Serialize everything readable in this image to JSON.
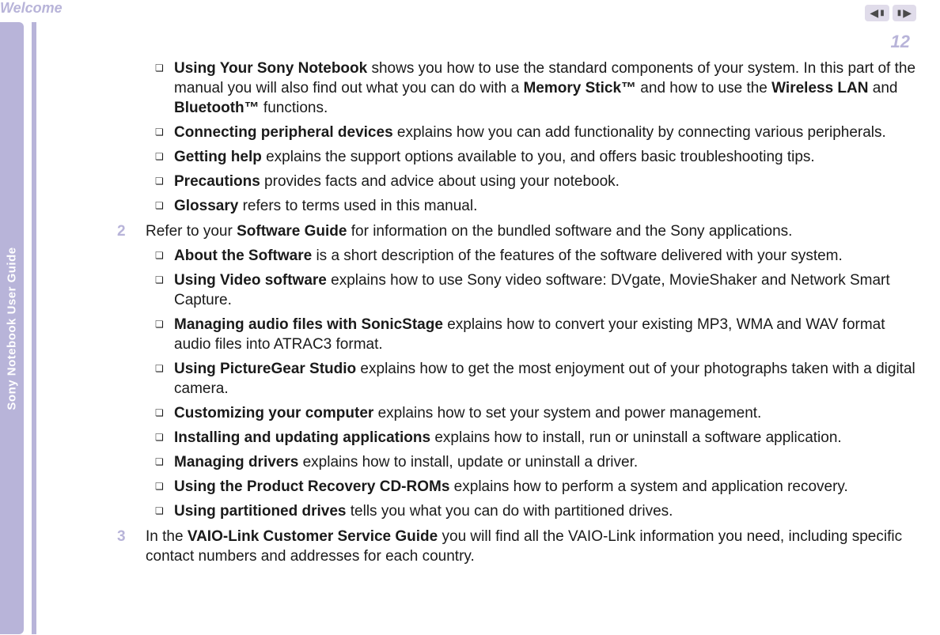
{
  "header": {
    "section": "Welcome",
    "side_label": "Sony Notebook User Guide",
    "page_number": "12"
  },
  "items": {
    "b1": {
      "title": "Using Your Sony Notebook",
      "rest": " shows you how to use the standard components of your system. In this part of the manual you will also find out what you can do with a ",
      "emph1": "Memory Stick™",
      "mid1": " and how to use the ",
      "emph2": "Wireless LAN",
      "mid2": " and ",
      "emph3": "Bluetooth™",
      "tail": " functions."
    },
    "b2": {
      "title": "Connecting peripheral devices",
      "rest": " explains how you can add functionality by connecting various peripherals."
    },
    "b3": {
      "title": "Getting help",
      "rest": " explains the support options available to you, and offers basic troubleshooting tips."
    },
    "b4": {
      "title": "Precautions",
      "rest": " provides facts and advice about using your notebook."
    },
    "b5": {
      "title": "Glossary",
      "rest": " refers to terms used in this manual."
    },
    "n2": {
      "num": "2",
      "pre": "Refer to your ",
      "title": "Software Guide",
      "rest": " for information on the bundled software and the Sony applications."
    },
    "b6": {
      "title": "About the Software",
      "rest": " is a short description of the features of the software delivered with your system."
    },
    "b7": {
      "title": "Using Video software",
      "rest": " explains how to use Sony video software: DVgate, MovieShaker and Network Smart Capture."
    },
    "b8": {
      "title": "Managing audio files with SonicStage",
      "rest": " explains how to convert your existing MP3, WMA and WAV format audio files into ATRAC3 format."
    },
    "b9": {
      "title": "Using PictureGear Studio",
      "rest": " explains how to get the most enjoyment out of your photographs taken with a digital camera."
    },
    "b10": {
      "title": "Customizing your computer",
      "rest": " explains how to set your system and power management."
    },
    "b11": {
      "title": "Installing and updating applications",
      "rest": " explains how to install, run or uninstall a software application."
    },
    "b12": {
      "title": "Managing drivers",
      "rest": " explains how to install, update or uninstall a driver."
    },
    "b13": {
      "title": "Using the Product Recovery CD-ROMs",
      "rest": " explains how to perform a system and application recovery."
    },
    "b14": {
      "title": "Using partitioned drives",
      "rest": " tells you what you can do with partitioned drives."
    },
    "n3": {
      "num": "3",
      "pre": "In the ",
      "title": "VAIO-Link Customer Service Guide",
      "rest": " you will find all the VAIO-Link information you need, including specific contact numbers and addresses for each country."
    }
  },
  "colors": {
    "accent": "#b8b4d9",
    "text": "#1a1a1a",
    "bg": "#ffffff"
  },
  "typography": {
    "body_size": 19,
    "page_num_size": 22,
    "header_size": 18
  }
}
